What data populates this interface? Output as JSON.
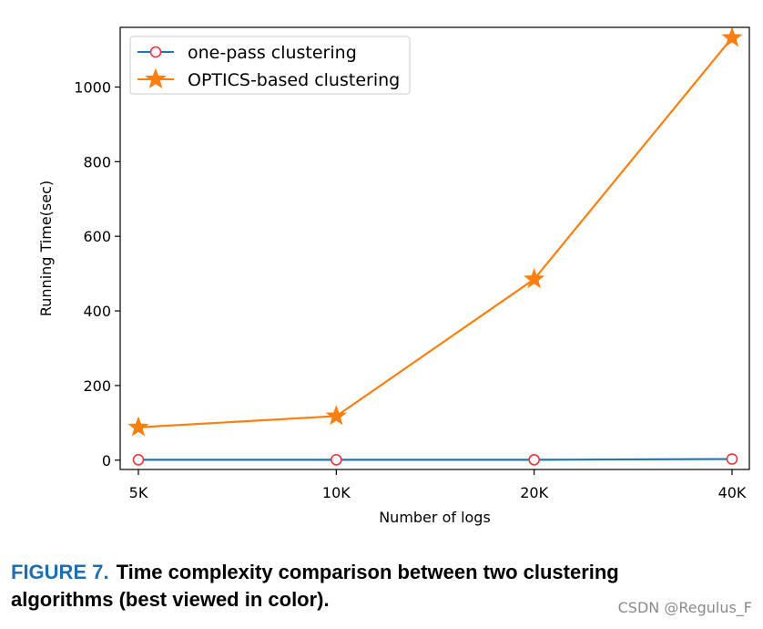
{
  "chart_data": {
    "type": "line",
    "categories": [
      "5K",
      "10K",
      "20K",
      "40K"
    ],
    "xlabel": "Number of logs",
    "ylabel": "Running Time(sec)",
    "ylim": [
      -25,
      1160
    ],
    "yticks": [
      0,
      200,
      400,
      600,
      800,
      1000
    ],
    "legend_position": "top-left",
    "grid": false,
    "series": [
      {
        "name": "one-pass clustering",
        "values": [
          1,
          1,
          1,
          3
        ],
        "color": "#1f77b4",
        "marker": "open-circle",
        "marker_color": "#e8383d"
      },
      {
        "name": "OPTICS-based clustering",
        "values": [
          88,
          118,
          485,
          1132
        ],
        "color": "#ff7f0e",
        "marker": "star",
        "marker_color": "#ff7f0e"
      }
    ]
  },
  "caption": {
    "figure_number": "FIGURE 7.",
    "text": "Time complexity comparison between two clustering algorithms (best viewed in color)."
  },
  "watermark": "CSDN @Regulus_F"
}
